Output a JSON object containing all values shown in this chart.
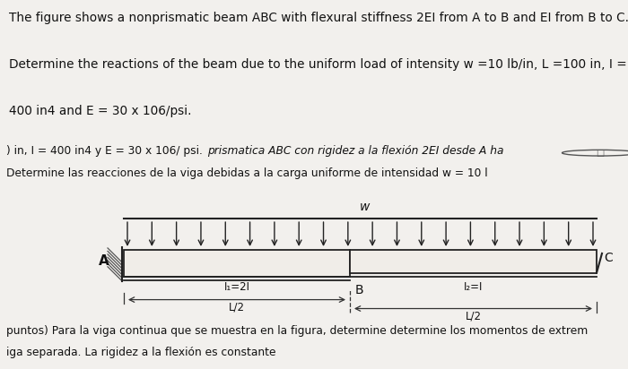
{
  "fig_bg_top": "#f2f0ed",
  "fig_bg_mid": "#cdc8c1",
  "fig_bg_beam": "#cdc8c1",
  "beam_fill": "#f0ede8",
  "beam_edge": "#222222",
  "load_color": "#222222",
  "label_A": "A",
  "label_B": "B",
  "label_C": "C",
  "label_w": "w",
  "label_I1": "I₁=2I",
  "label_I2": "I₂=I",
  "label_L1": "L/2",
  "label_L2": "L/2",
  "top_line1": "The figure shows a nonprismatic beam ABC with flexural stiffness 2EI from A to B and EI from B to C.",
  "top_line2": "Determine the reactions of the beam due to the uniform load of intensity w =10 lb/in, L =100 in, I =",
  "top_line3": "400 in4 and E = 30 x 106/psi.",
  "mid_line1_left": ") in, I = 400 in4 y E = 30 x 106/ psi.",
  "mid_line1_center": "prismatica ABC con rigidez a la flexión 2EI desde A ha",
  "mid_line2": "Determine las reacciones de la viga debidas a la carga uniforme de intensidad w = 10 l",
  "bot_line1": "puntos) Para la viga continua que se muestra en la figura, determine determine los momentos de extrem",
  "bot_line2": "iga separada. La rigidez a la flexión es constante",
  "n_arrows": 20,
  "hatch_lines": 7
}
